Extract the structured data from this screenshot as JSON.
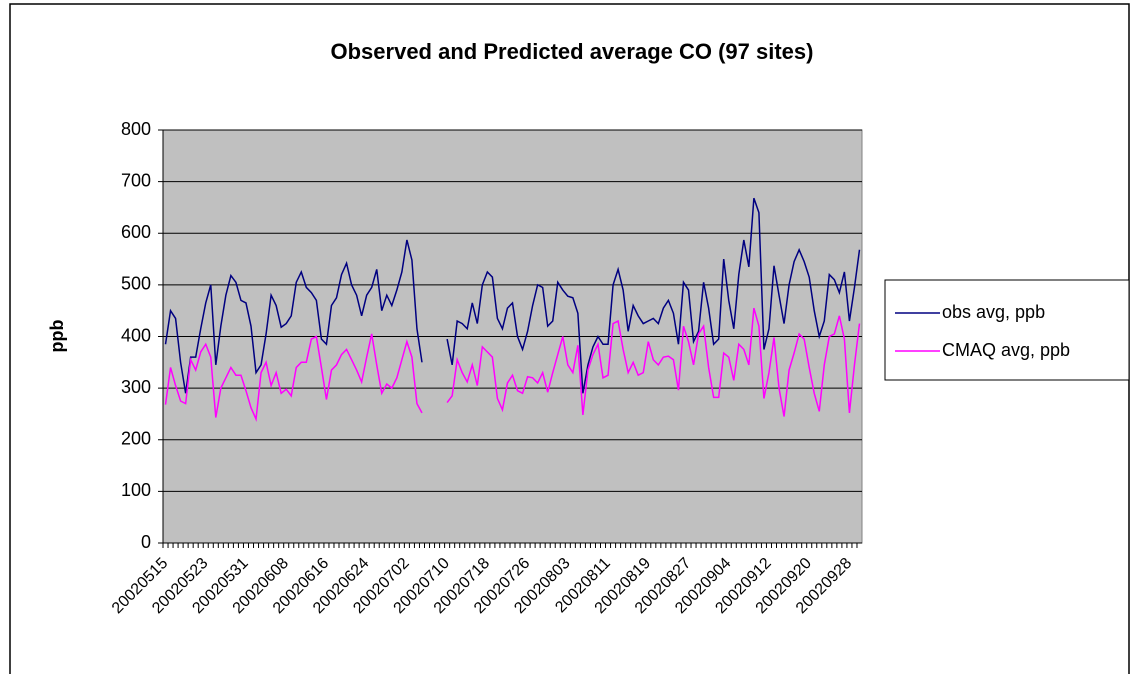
{
  "chart_data": {
    "type": "line",
    "title": "Observed and Predicted average CO (97 sites)",
    "y_label": "ppb",
    "categories": [
      "20020515",
      null,
      null,
      null,
      null,
      null,
      null,
      null,
      "20020523",
      null,
      null,
      null,
      null,
      null,
      null,
      null,
      "20020531",
      null,
      null,
      null,
      null,
      null,
      null,
      null,
      "20020608",
      null,
      null,
      null,
      null,
      null,
      null,
      null,
      "20020616",
      null,
      null,
      null,
      null,
      null,
      null,
      null,
      "20020624",
      null,
      null,
      null,
      null,
      null,
      null,
      null,
      "20020702",
      null,
      null,
      null,
      null,
      null,
      null,
      null,
      "20020710",
      null,
      null,
      null,
      null,
      null,
      null,
      null,
      "20020718",
      null,
      null,
      null,
      null,
      null,
      null,
      null,
      "20020726",
      null,
      null,
      null,
      null,
      null,
      null,
      null,
      "20020803",
      null,
      null,
      null,
      null,
      null,
      null,
      null,
      "20020811",
      null,
      null,
      null,
      null,
      null,
      null,
      null,
      "20020819",
      null,
      null,
      null,
      null,
      null,
      null,
      null,
      "20020827",
      null,
      null,
      null,
      null,
      null,
      null,
      null,
      "20020904",
      null,
      null,
      null,
      null,
      null,
      null,
      null,
      "20020912",
      null,
      null,
      null,
      null,
      null,
      null,
      null,
      "20020920",
      null,
      null,
      null,
      null,
      null,
      null,
      null,
      "20020928",
      null,
      null
    ],
    "series": [
      {
        "name": "obs avg, ppb",
        "color": "#000080",
        "values": [
          385,
          450,
          435,
          350,
          290,
          360,
          360,
          415,
          465,
          500,
          345,
          420,
          480,
          518,
          505,
          470,
          465,
          420,
          330,
          345,
          405,
          480,
          460,
          418,
          425,
          440,
          505,
          525,
          495,
          485,
          470,
          395,
          385,
          460,
          475,
          520,
          542,
          500,
          480,
          440,
          480,
          495,
          530,
          450,
          480,
          460,
          490,
          525,
          587,
          548,
          415,
          350,
          null,
          null,
          null,
          null,
          395,
          345,
          430,
          425,
          415,
          465,
          425,
          500,
          525,
          515,
          435,
          415,
          455,
          465,
          400,
          375,
          410,
          460,
          500,
          495,
          420,
          430,
          505,
          490,
          478,
          475,
          445,
          290,
          345,
          380,
          400,
          385,
          385,
          500,
          530,
          490,
          410,
          460,
          440,
          425,
          430,
          435,
          425,
          455,
          470,
          445,
          385,
          505,
          490,
          390,
          410,
          505,
          455,
          385,
          395,
          550,
          470,
          415,
          520,
          587,
          535,
          668,
          640,
          375,
          415,
          537,
          480,
          425,
          500,
          545,
          568,
          545,
          515,
          450,
          400,
          430,
          520,
          510,
          485,
          525,
          430,
          495,
          568
        ]
      },
      {
        "name": "CMAQ avg, ppb",
        "color": "#ff00ff",
        "values": [
          268,
          340,
          305,
          275,
          270,
          355,
          335,
          370,
          385,
          360,
          243,
          300,
          320,
          340,
          325,
          325,
          295,
          262,
          240,
          330,
          350,
          305,
          330,
          290,
          298,
          285,
          340,
          350,
          350,
          395,
          400,
          340,
          278,
          335,
          345,
          365,
          375,
          355,
          335,
          312,
          360,
          405,
          345,
          290,
          308,
          300,
          320,
          355,
          390,
          360,
          270,
          252,
          null,
          null,
          null,
          null,
          272,
          285,
          355,
          330,
          312,
          345,
          305,
          380,
          370,
          360,
          280,
          258,
          310,
          325,
          295,
          290,
          322,
          320,
          310,
          330,
          292,
          330,
          365,
          400,
          345,
          330,
          383,
          248,
          335,
          365,
          385,
          320,
          325,
          425,
          430,
          375,
          330,
          350,
          325,
          330,
          390,
          355,
          345,
          360,
          362,
          355,
          296,
          420,
          390,
          345,
          405,
          420,
          340,
          282,
          282,
          368,
          360,
          315,
          385,
          375,
          345,
          455,
          420,
          280,
          330,
          398,
          300,
          245,
          335,
          368,
          405,
          395,
          340,
          290,
          255,
          345,
          400,
          405,
          440,
          395,
          252,
          345,
          425
        ]
      }
    ],
    "ylim": [
      0,
      800
    ],
    "yticks": [
      0,
      100,
      200,
      300,
      400,
      500,
      600,
      700,
      800
    ],
    "grid": true,
    "plot_background": "#c0c0c0",
    "legend": "right"
  }
}
